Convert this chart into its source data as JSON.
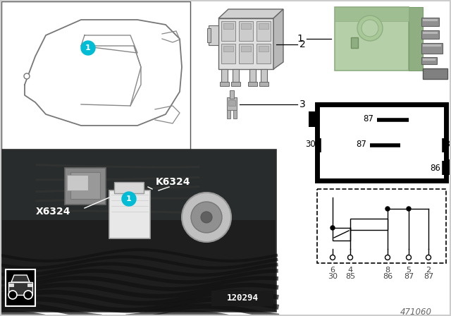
{
  "bg_color": "#ffffff",
  "teal_color": "#00bcd4",
  "photo_label": "120294",
  "diagram_label": "471060",
  "x6324_label": "X6324",
  "k6324_label": "K6324",
  "schematic_bottom_labels_row1": [
    "6",
    "4",
    "8",
    "5",
    "2"
  ],
  "schematic_bottom_labels_row2": [
    "30",
    "85",
    "86",
    "87",
    "87"
  ],
  "relay_green": "#b5cfa8",
  "relay_green_dark": "#8fae82",
  "relay_green_top": "#9fbf93",
  "connector_gray": "#c8c8c8",
  "connector_dark": "#888888",
  "pin_metal": "#a0a0a0",
  "photo_bg": "#2a2a2a"
}
